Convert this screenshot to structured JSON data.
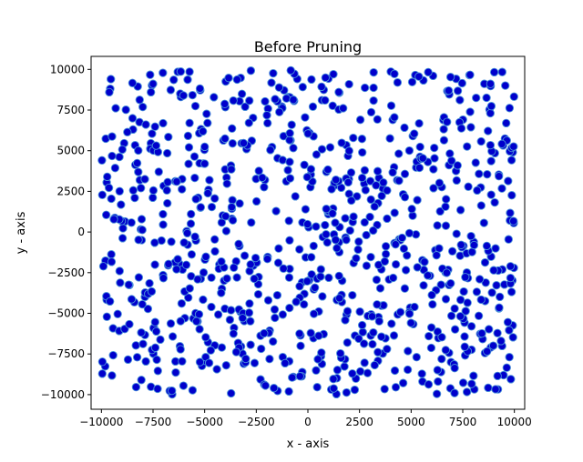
{
  "chart_data": {
    "type": "scatter",
    "title": "Before Pruning",
    "xlabel": "x - axis",
    "ylabel": "y - axis",
    "xlim": [
      -10500,
      10500
    ],
    "ylim": [
      -10900,
      10800
    ],
    "xticks": [
      -10000,
      -7500,
      -5000,
      -2500,
      0,
      2500,
      5000,
      7500,
      10000
    ],
    "yticks": [
      -10000,
      -7500,
      -5000,
      -2500,
      0,
      2500,
      5000,
      7500,
      10000
    ],
    "grid": false,
    "marker_fill": "#0000cc",
    "marker_edge": "#4a90d9",
    "point_count": 900,
    "points_note": "Uniform random scatter across x,y in [-10000, 10000]; generated deterministically in script."
  }
}
